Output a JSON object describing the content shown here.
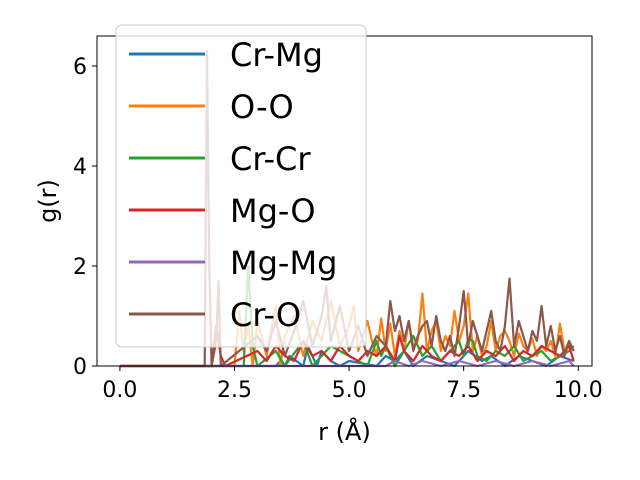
{
  "chart_data": {
    "type": "line",
    "xlabel": "r (Å)",
    "ylabel": "g(r)",
    "xlim": [
      -0.5,
      10.3
    ],
    "ylim": [
      0,
      6.6
    ],
    "xticks": [
      0.0,
      2.5,
      5.0,
      7.5,
      10.0
    ],
    "xtick_labels": [
      "0.0",
      "2.5",
      "5.0",
      "7.5",
      "10.0"
    ],
    "yticks": [
      0,
      2,
      4,
      6
    ],
    "ytick_labels": [
      "0",
      "2",
      "4",
      "6"
    ],
    "grid": false,
    "legend_position": "top-left",
    "series": [
      {
        "name": "Cr-Mg",
        "color": "#1f77b4",
        "x": [
          0.0,
          3.4,
          3.5,
          3.6,
          3.7,
          4.0,
          4.1,
          4.2,
          4.3,
          4.4,
          4.6,
          4.8,
          5.0,
          5.6,
          5.8,
          6.0,
          6.2,
          6.4,
          6.7,
          7.0,
          7.3,
          7.6,
          7.9,
          8.1,
          8.4,
          8.7,
          9.0,
          9.3,
          9.6,
          9.9
        ],
        "y": [
          0.0,
          0.0,
          0.1,
          0.0,
          0.2,
          0.0,
          0.4,
          0.2,
          0.0,
          0.3,
          0.1,
          0.0,
          0.1,
          0.0,
          0.2,
          0.1,
          0.3,
          0.0,
          0.2,
          0.1,
          0.0,
          0.3,
          0.1,
          0.2,
          0.0,
          0.2,
          0.1,
          0.0,
          0.2,
          0.1
        ]
      },
      {
        "name": "O-O",
        "color": "#ff7f0e",
        "x": [
          0.0,
          2.5,
          2.6,
          2.7,
          2.8,
          2.9,
          3.0,
          3.2,
          3.4,
          3.5,
          3.6,
          3.8,
          4.0,
          4.2,
          4.4,
          4.6,
          4.8,
          5.0,
          5.1,
          5.2,
          5.4,
          5.5,
          5.6,
          5.7,
          5.8,
          5.9,
          6.0,
          6.1,
          6.2,
          6.3,
          6.4,
          6.5,
          6.6,
          6.7,
          6.8,
          6.9,
          7.0,
          7.1,
          7.2,
          7.3,
          7.4,
          7.5,
          7.6,
          7.7,
          7.8,
          7.9,
          8.0,
          8.1,
          8.2,
          8.3,
          8.4,
          8.5,
          8.6,
          8.7,
          8.8,
          8.9,
          9.0,
          9.1,
          9.2,
          9.3,
          9.4,
          9.5,
          9.6,
          9.7,
          9.8,
          9.9
        ],
        "y": [
          0.0,
          0.0,
          1.1,
          0.3,
          0.8,
          0.0,
          0.9,
          0.2,
          1.2,
          0.0,
          0.6,
          1.0,
          0.2,
          0.9,
          0.5,
          1.3,
          0.4,
          0.8,
          1.2,
          0.3,
          0.9,
          0.5,
          0.2,
          0.95,
          0.3,
          0.85,
          0.2,
          0.7,
          0.3,
          0.9,
          0.4,
          0.5,
          1.45,
          0.3,
          0.7,
          0.9,
          0.3,
          0.6,
          0.4,
          1.1,
          0.5,
          0.8,
          1.45,
          0.3,
          0.6,
          0.2,
          0.4,
          0.9,
          0.3,
          0.6,
          0.7,
          0.5,
          0.2,
          0.65,
          0.4,
          0.3,
          0.55,
          0.2,
          0.4,
          0.3,
          0.5,
          0.2,
          0.85,
          0.3,
          0.5,
          0.3
        ]
      },
      {
        "name": "Cr-Cr",
        "color": "#2ca02c",
        "x": [
          0.0,
          2.7,
          2.8,
          2.9,
          3.0,
          3.4,
          3.6,
          4.0,
          4.2,
          4.6,
          5.0,
          5.4,
          5.6,
          5.7,
          5.8,
          6.0,
          6.2,
          6.4,
          6.6,
          6.8,
          7.0,
          7.2,
          7.4,
          7.5,
          7.6,
          7.7,
          7.8,
          8.0,
          8.2,
          8.4,
          8.6,
          8.8,
          9.0,
          9.2,
          9.4,
          9.6,
          9.8,
          9.9
        ],
        "y": [
          0.0,
          0.0,
          2.0,
          0.4,
          0.0,
          0.3,
          0.0,
          0.5,
          0.0,
          0.4,
          0.2,
          0.0,
          0.5,
          0.2,
          0.4,
          0.0,
          0.3,
          0.6,
          0.2,
          0.4,
          0.1,
          0.3,
          0.5,
          0.2,
          0.55,
          0.5,
          0.2,
          0.1,
          0.3,
          0.2,
          0.4,
          0.1,
          0.2,
          0.3,
          0.1,
          0.2,
          0.3,
          0.4
        ]
      },
      {
        "name": "Mg-O",
        "color": "#d62728",
        "x": [
          0.0,
          2.0,
          2.1,
          2.2,
          2.3,
          3.0,
          3.2,
          3.4,
          3.6,
          3.8,
          4.0,
          4.2,
          4.4,
          4.6,
          4.8,
          5.0,
          5.2,
          5.4,
          5.6,
          5.8,
          6.0,
          6.1,
          6.2,
          6.4,
          6.6,
          6.8,
          7.0,
          7.2,
          7.4,
          7.6,
          7.8,
          8.0,
          8.2,
          8.4,
          8.6,
          8.8,
          9.0,
          9.2,
          9.4,
          9.6,
          9.8,
          9.9
        ],
        "y": [
          0.0,
          0.0,
          0.8,
          0.2,
          0.0,
          0.3,
          0.1,
          0.4,
          0.2,
          0.1,
          0.5,
          0.2,
          0.3,
          0.1,
          0.4,
          0.2,
          0.1,
          0.3,
          0.2,
          0.4,
          0.1,
          0.6,
          0.3,
          0.1,
          0.4,
          0.2,
          0.1,
          0.3,
          0.2,
          0.4,
          0.1,
          0.3,
          0.2,
          0.4,
          0.1,
          0.3,
          0.2,
          0.4,
          0.3,
          0.2,
          0.4,
          0.1
        ]
      },
      {
        "name": "Mg-Mg",
        "color": "#9467bd",
        "x": [
          0.0,
          5.8,
          6.0,
          6.3,
          6.6,
          7.0,
          7.4,
          7.8,
          8.2,
          8.6,
          9.0,
          9.4,
          9.8,
          9.9
        ],
        "y": [
          0.0,
          0.0,
          0.1,
          0.0,
          0.1,
          0.0,
          0.1,
          0.0,
          0.1,
          0.0,
          0.1,
          0.0,
          0.1,
          0.0
        ]
      },
      {
        "name": "Cr-O",
        "color": "#8c564b",
        "x": [
          0.0,
          1.85,
          1.9,
          1.95,
          2.0,
          2.1,
          2.15,
          2.2,
          3.0,
          3.2,
          3.4,
          3.6,
          3.8,
          4.0,
          4.2,
          4.4,
          4.5,
          4.6,
          4.8,
          5.0,
          5.2,
          5.4,
          5.6,
          5.8,
          5.9,
          6.0,
          6.1,
          6.2,
          6.3,
          6.4,
          6.5,
          6.6,
          6.7,
          6.8,
          6.9,
          7.0,
          7.1,
          7.2,
          7.3,
          7.4,
          7.5,
          7.6,
          7.7,
          7.8,
          7.9,
          8.0,
          8.1,
          8.2,
          8.3,
          8.4,
          8.5,
          8.6,
          8.7,
          8.8,
          8.9,
          9.0,
          9.1,
          9.2,
          9.3,
          9.4,
          9.5,
          9.6,
          9.7,
          9.8,
          9.9
        ],
        "y": [
          0.0,
          0.0,
          6.3,
          2.0,
          0.0,
          0.5,
          1.7,
          0.0,
          0.6,
          0.3,
          0.9,
          0.2,
          0.7,
          1.3,
          0.4,
          1.0,
          1.6,
          0.5,
          1.2,
          0.3,
          0.8,
          0.2,
          0.6,
          0.4,
          1.3,
          0.7,
          1.0,
          0.5,
          0.9,
          0.3,
          0.6,
          0.8,
          0.9,
          0.4,
          1.0,
          0.5,
          0.3,
          0.6,
          0.2,
          0.8,
          1.5,
          0.4,
          0.9,
          0.6,
          0.3,
          0.7,
          1.1,
          0.5,
          0.3,
          0.8,
          1.75,
          0.4,
          0.9,
          0.6,
          0.3,
          0.7,
          0.5,
          1.2,
          0.4,
          0.8,
          0.3,
          0.6,
          0.2,
          0.5,
          0.3
        ]
      }
    ]
  }
}
